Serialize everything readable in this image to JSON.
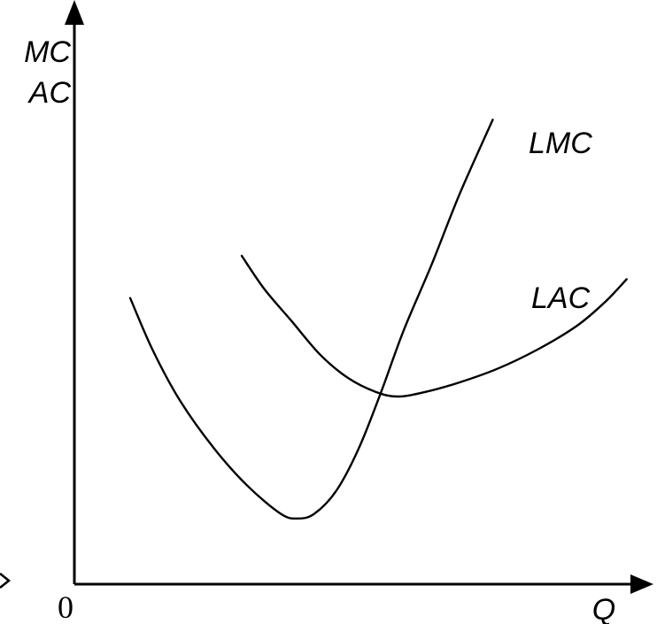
{
  "chart_data": {
    "type": "line",
    "title": "",
    "xlabel": "Q",
    "ylabel_lines": [
      "MC",
      "AC"
    ],
    "origin_label": "0",
    "grid": false,
    "legend": "none",
    "axis_ticks": "none",
    "series": [
      {
        "name": "LMC",
        "points": [
          [
            0.1,
            0.61
          ],
          [
            0.14,
            0.5
          ],
          [
            0.19,
            0.39
          ],
          [
            0.25,
            0.29
          ],
          [
            0.31,
            0.21
          ],
          [
            0.37,
            0.15
          ],
          [
            0.4,
            0.14
          ],
          [
            0.43,
            0.15
          ],
          [
            0.47,
            0.2
          ],
          [
            0.51,
            0.29
          ],
          [
            0.55,
            0.41
          ],
          [
            0.59,
            0.54
          ],
          [
            0.64,
            0.68
          ],
          [
            0.69,
            0.83
          ],
          [
            0.75,
            0.99
          ]
        ]
      },
      {
        "name": "LAC",
        "points": [
          [
            0.3,
            0.7
          ],
          [
            0.34,
            0.63
          ],
          [
            0.39,
            0.56
          ],
          [
            0.44,
            0.49
          ],
          [
            0.49,
            0.44
          ],
          [
            0.54,
            0.41
          ],
          [
            0.58,
            0.4
          ],
          [
            0.63,
            0.41
          ],
          [
            0.69,
            0.43
          ],
          [
            0.76,
            0.46
          ],
          [
            0.83,
            0.5
          ],
          [
            0.9,
            0.55
          ],
          [
            0.95,
            0.6
          ],
          [
            0.99,
            0.65
          ]
        ]
      }
    ]
  },
  "colors": {
    "axis": "#000000",
    "curve": "#000000",
    "background": "#ffffff"
  }
}
